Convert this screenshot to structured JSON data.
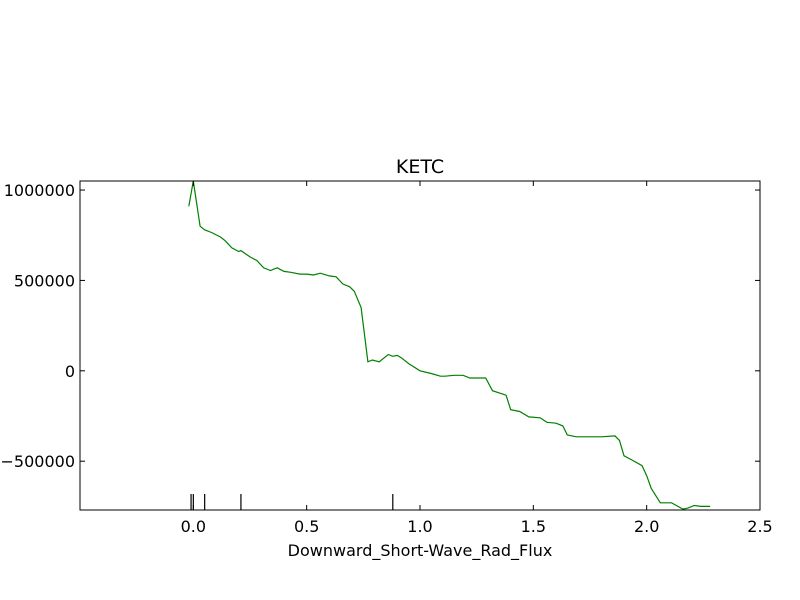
{
  "chart_data": {
    "type": "line",
    "title": "KETC",
    "xlabel": "Downward_Short-Wave_Rad_Flux",
    "ylabel": "",
    "xlim": [
      -0.5,
      2.5
    ],
    "ylim": [
      -770000,
      1050000
    ],
    "xticks": [
      0.0,
      0.5,
      1.0,
      1.5,
      2.0,
      2.5
    ],
    "xtick_labels": [
      "0.0",
      "0.5",
      "1.0",
      "1.5",
      "2.0",
      "2.5"
    ],
    "yticks": [
      -500000,
      0,
      500000,
      1000000
    ],
    "ytick_labels": [
      "−500000",
      "0",
      "500000",
      "1000000"
    ],
    "grid": false,
    "line_color": "#008000",
    "rug_color": "#000000",
    "series": [
      {
        "x": [
          -0.02,
          0.0,
          0.03,
          0.05,
          0.08,
          0.12,
          0.14,
          0.17,
          0.2,
          0.21,
          0.25,
          0.28,
          0.31,
          0.34,
          0.37,
          0.4,
          0.43,
          0.47,
          0.5,
          0.53,
          0.56,
          0.6,
          0.63,
          0.66,
          0.69,
          0.71,
          0.74,
          0.77,
          0.79,
          0.82,
          0.86,
          0.88,
          0.9,
          0.92,
          0.95,
          1.0,
          1.05,
          1.09,
          1.11,
          1.15,
          1.19,
          1.22,
          1.29,
          1.32,
          1.38,
          1.4,
          1.44,
          1.48,
          1.53,
          1.56,
          1.6,
          1.63,
          1.65,
          1.69,
          1.76,
          1.8,
          1.86,
          1.88,
          1.9,
          1.93,
          1.98,
          2.0,
          2.02,
          2.06,
          2.11,
          2.16,
          2.18,
          2.21,
          2.24,
          2.28
        ],
        "y": [
          910000,
          1050000,
          800000,
          780000,
          765000,
          740000,
          720000,
          680000,
          660000,
          665000,
          630000,
          610000,
          570000,
          555000,
          570000,
          550000,
          545000,
          535000,
          535000,
          530000,
          540000,
          525000,
          520000,
          480000,
          465000,
          440000,
          350000,
          50000,
          60000,
          50000,
          90000,
          80000,
          85000,
          70000,
          40000,
          0,
          -15000,
          -30000,
          -30000,
          -25000,
          -25000,
          -40000,
          -40000,
          -110000,
          -135000,
          -215000,
          -225000,
          -255000,
          -260000,
          -285000,
          -290000,
          -305000,
          -355000,
          -365000,
          -365000,
          -365000,
          -360000,
          -385000,
          -470000,
          -490000,
          -525000,
          -580000,
          -650000,
          -730000,
          -730000,
          -765000,
          -760000,
          -745000,
          -750000,
          -750000
        ]
      }
    ],
    "rug": [
      -0.01,
      0.0,
      0.05,
      0.21,
      0.88
    ]
  }
}
